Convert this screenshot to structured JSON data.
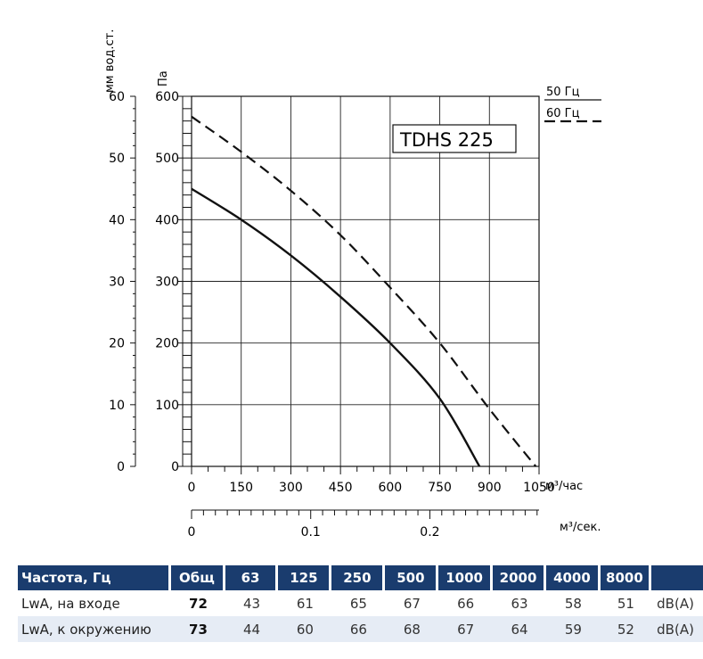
{
  "chart_data": {
    "type": "line",
    "title": "TDHS 225",
    "x": [
      0,
      150,
      300,
      450,
      600,
      750,
      900,
      1050
    ],
    "x_tick_labels": [
      "0",
      "150",
      "300",
      "450",
      "600",
      "750",
      "900",
      "1050"
    ],
    "xlabel": "м³/час",
    "xlim": [
      0,
      1050
    ],
    "secondary_x": {
      "ticks": [
        0,
        0.1,
        0.2
      ],
      "tick_labels": [
        "0",
        "0.1",
        "0.2"
      ],
      "label": "м³/сек."
    },
    "ylabel": "Па",
    "ylim": [
      0,
      600
    ],
    "y_ticks": [
      0,
      100,
      200,
      300,
      400,
      500,
      600
    ],
    "y_tick_labels": [
      "0",
      "100",
      "200",
      "300",
      "400",
      "500",
      "600"
    ],
    "secondary_y": {
      "label": "мм вод.ст.",
      "ticks": [
        0,
        10,
        20,
        30,
        40,
        50,
        60
      ],
      "tick_labels": [
        "0",
        "10",
        "20",
        "30",
        "40",
        "50",
        "60"
      ]
    },
    "grid": true,
    "legend": [
      "50 Гц",
      "60 Гц"
    ],
    "series": [
      {
        "name": "50 Гц",
        "style": "solid",
        "points": [
          [
            0,
            450
          ],
          [
            150,
            400
          ],
          [
            300,
            342
          ],
          [
            450,
            275
          ],
          [
            600,
            200
          ],
          [
            750,
            110
          ],
          [
            870,
            0
          ]
        ]
      },
      {
        "name": "60 Гц",
        "style": "dashed",
        "points": [
          [
            0,
            567
          ],
          [
            150,
            510
          ],
          [
            300,
            447
          ],
          [
            450,
            375
          ],
          [
            600,
            290
          ],
          [
            750,
            200
          ],
          [
            900,
            93
          ],
          [
            1040,
            0
          ]
        ]
      }
    ]
  },
  "sound_table": {
    "header": [
      "Частота, Гц",
      "Общ",
      "63",
      "125",
      "250",
      "500",
      "1000",
      "2000",
      "4000",
      "8000"
    ],
    "rows": [
      {
        "label": "LwA, на входе",
        "total": "72",
        "values": [
          "43",
          "61",
          "65",
          "67",
          "66",
          "63",
          "58",
          "51"
        ],
        "unit": "dB(A)"
      },
      {
        "label": "LwA, к окружению",
        "total": "73",
        "values": [
          "44",
          "60",
          "66",
          "68",
          "67",
          "64",
          "59",
          "52"
        ],
        "unit": "dB(A)"
      }
    ]
  },
  "colors": {
    "header_bg": "#1a3c6e",
    "row_alt_bg": "#e6ecf5",
    "line": "#111111"
  }
}
